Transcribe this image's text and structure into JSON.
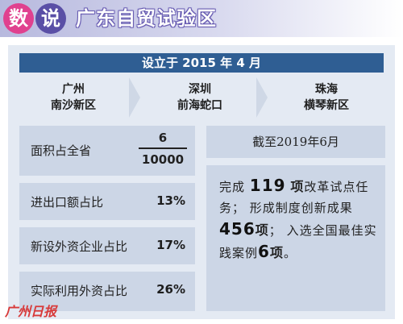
{
  "header": {
    "badge_1": "数",
    "badge_2": "说",
    "title": "广东自贸试验区",
    "colors": {
      "badge_1": "#e0418f",
      "badge_2": "#5a4fa6",
      "bar": "#2f5e93",
      "panel": "#e4eaf3"
    }
  },
  "established": "设立于 2015 年 4 月",
  "zones": [
    {
      "city": "广州",
      "area": "南沙新区"
    },
    {
      "city": "深圳",
      "area": "前海蛇口"
    },
    {
      "city": "珠海",
      "area": "横琴新区"
    }
  ],
  "stats": {
    "area_label": "面积占全省",
    "area_numerator": "6",
    "area_denominator": "10000",
    "trade_label": "进出口额占比",
    "trade_value": "13%",
    "fdi_label": "新设外资企业占比",
    "fdi_value": "17%",
    "fdi_use_label": "实际利用外资占比",
    "fdi_use_value": "26%"
  },
  "as_of": "截至2019年6月",
  "summary": {
    "p1_a": "完成",
    "p1_num": "119",
    "p1_unit": "项",
    "p1_b": "改革试点任务；",
    "p2_a": "形成制度创新成果",
    "p2_num": "456",
    "p2_unit": "项",
    "p2_b": "；",
    "p3_a": "入选全国最佳实践案例",
    "p3_num": "6",
    "p3_unit": "项",
    "p3_b": "。"
  },
  "logo_text": "广州日报"
}
